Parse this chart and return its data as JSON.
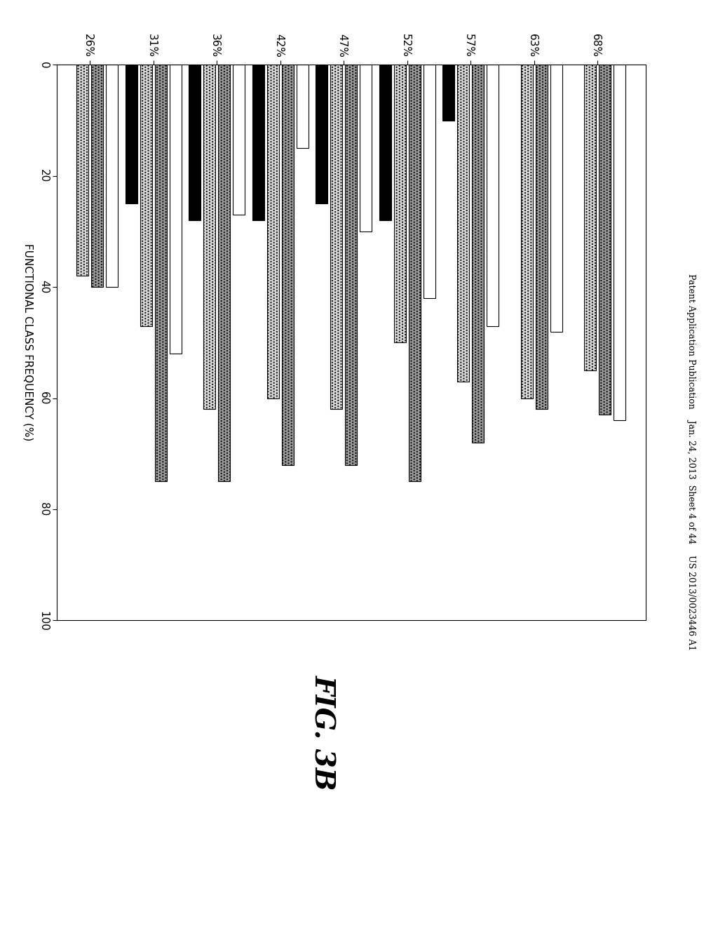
{
  "header": "Patent Application Publication    Jan. 24, 2013  Sheet 4 of 44    US 2013/0023446 A1",
  "figure_label": "FIG. 3B",
  "xlabel": "FUNCTIONAL CLASS FREQUENCY (%)",
  "categories": [
    "26%",
    "31%",
    "36%",
    "42%",
    "47%",
    "52%",
    "57%",
    "63%",
    "68%"
  ],
  "white_bars": [
    40,
    52,
    27,
    15,
    30,
    42,
    47,
    48,
    64
  ],
  "dark_dot_bars": [
    40,
    75,
    75,
    72,
    72,
    75,
    68,
    62,
    63
  ],
  "light_dot_bars": [
    38,
    47,
    62,
    60,
    62,
    50,
    57,
    60,
    55
  ],
  "black_bars": [
    0,
    25,
    28,
    28,
    25,
    28,
    10,
    0,
    0
  ],
  "xlim": [
    0,
    100
  ],
  "xticks": [
    0,
    20,
    40,
    60,
    80,
    100
  ]
}
